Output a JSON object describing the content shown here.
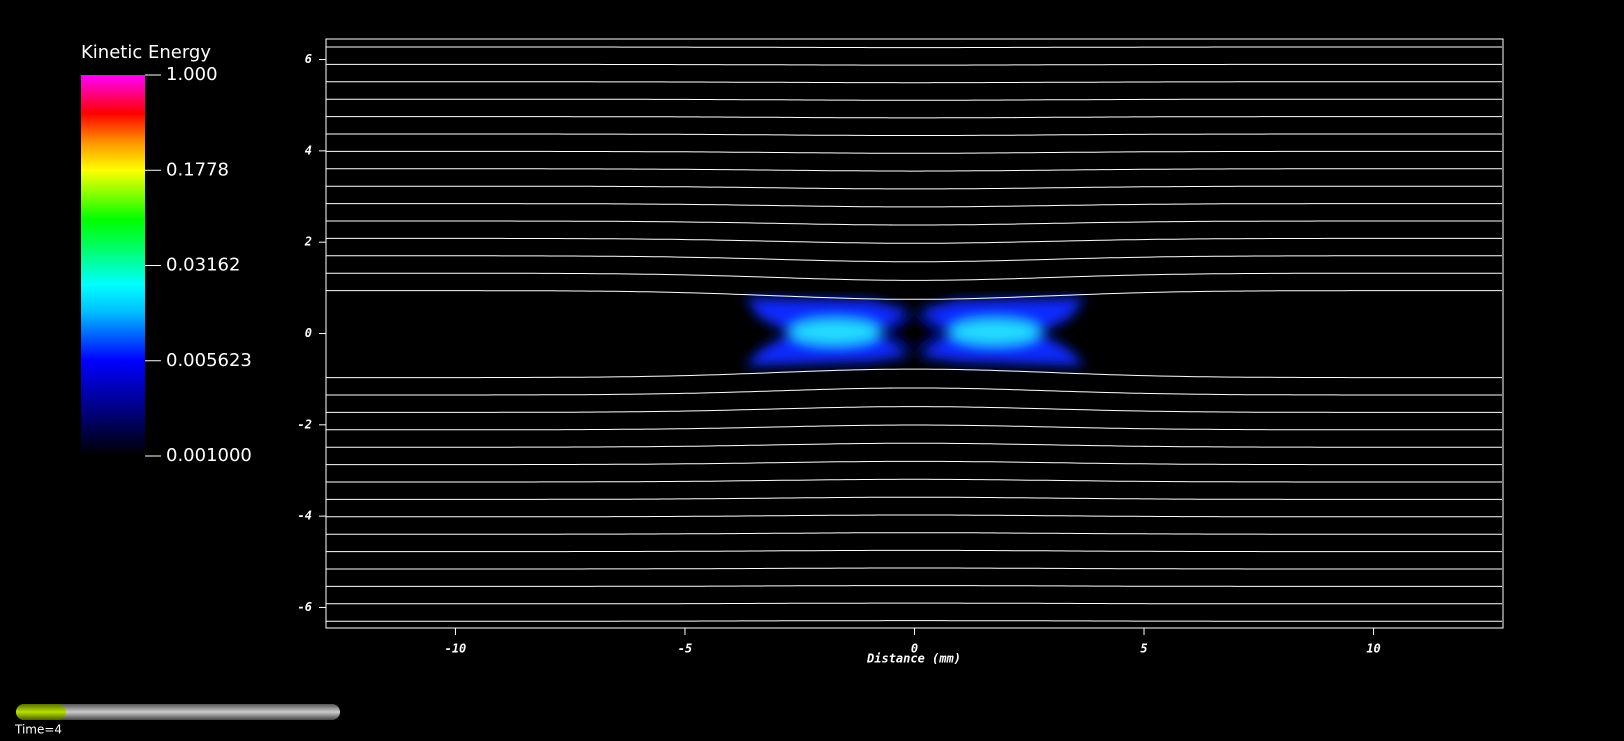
{
  "color_legend": {
    "title": "Kinetic Energy",
    "scale": "log",
    "lim": [
      0.001,
      1
    ],
    "ticks": [
      {
        "value": 1,
        "label": "1.000"
      },
      0.1778,
      0.03162,
      0.005623,
      {
        "value": 0.001,
        "label": "0.001000"
      }
    ]
  },
  "plot": {
    "x_label": "Distance (mm)",
    "xlim": [
      -12.82,
      12.82
    ],
    "ylim": [
      -6.45,
      6.45
    ],
    "xticks": [
      -10,
      -5,
      0,
      5,
      10
    ],
    "yticks": [
      -6,
      -4,
      -2,
      0,
      2,
      4,
      6
    ]
  },
  "time_label": "Time=4"
}
